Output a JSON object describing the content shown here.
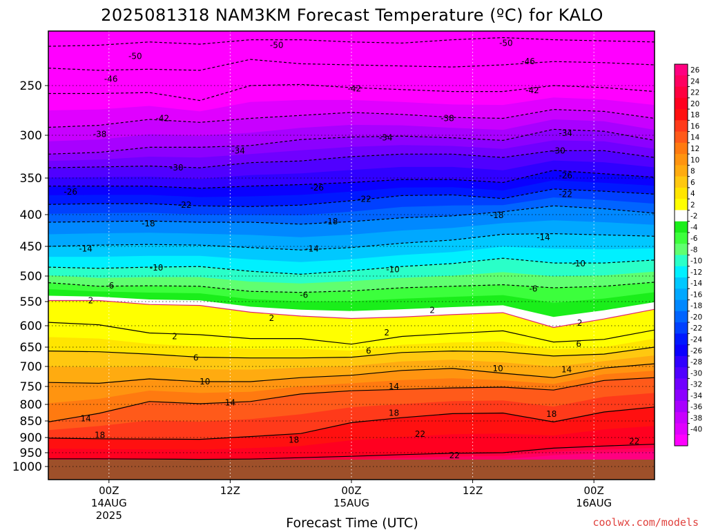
{
  "chart_data": {
    "type": "heatmap",
    "title": "2025081318 NAM3KM Forecast Temperature (ºC) for KALO",
    "xlabel": "Forecast Time (UTC)",
    "ylabel": "",
    "credit": "coolwx.com/models",
    "x_range_hours": [
      -6,
      54
    ],
    "y_scale": "pressure",
    "y_range_hpa": [
      1000,
      200
    ],
    "y_ticks": [
      "250",
      "300",
      "350",
      "400",
      "450",
      "500",
      "550",
      "600",
      "650",
      "700",
      "750",
      "800",
      "850",
      "900",
      "950",
      "1000"
    ],
    "y_tick_values": [
      250,
      300,
      350,
      400,
      450,
      500,
      550,
      600,
      650,
      700,
      750,
      800,
      850,
      900,
      950,
      1000
    ],
    "x_ticks": [
      {
        "hour": 0,
        "label": "00Z",
        "date": "14AUG",
        "year": "2025"
      },
      {
        "hour": 12,
        "label": "12Z",
        "date": "",
        "year": ""
      },
      {
        "hour": 24,
        "label": "00Z",
        "date": "15AUG",
        "year": ""
      },
      {
        "hour": 36,
        "label": "12Z",
        "date": "",
        "year": ""
      },
      {
        "hour": 48,
        "label": "00Z",
        "date": "16AUG",
        "year": ""
      }
    ],
    "grid": "dotted",
    "colorbar": {
      "position": "right",
      "levels": [
        26,
        24,
        22,
        20,
        18,
        16,
        14,
        12,
        10,
        8,
        6,
        4,
        2,
        -2,
        -4,
        -6,
        -8,
        -10,
        -12,
        -14,
        -16,
        -18,
        -20,
        -22,
        -24,
        -26,
        -28,
        -30,
        -32,
        -34,
        -36,
        -38,
        -40
      ],
      "level_labels": [
        "26",
        "24",
        "22",
        "20",
        "18",
        "16",
        "14",
        "12",
        "10",
        "8",
        "6",
        "4",
        "2",
        "-2",
        "-4",
        "-6",
        "-8",
        "-10",
        "-12",
        "-14",
        "-16",
        "-18",
        "-20",
        "-22",
        "-24",
        "-26",
        "-28",
        "-30",
        "-32",
        "-34",
        "-36",
        "-38",
        "-40"
      ],
      "colors": [
        "#ff0080",
        "#ff0060",
        "#ff0040",
        "#ff0020",
        "#ff1010",
        "#ff3a1a",
        "#ff5a1a",
        "#ff7a10",
        "#ff9410",
        "#ffab10",
        "#ffc810",
        "#ffe500",
        "#ffff00",
        "#ffffff",
        "#1aee1a",
        "#3cff3c",
        "#60ff70",
        "#2affc8",
        "#00f0ff",
        "#00c8ff",
        "#00a8ff",
        "#0088ff",
        "#0064ff",
        "#0040ff",
        "#0018ff",
        "#0a00ff",
        "#3000ff",
        "#5000ff",
        "#7000ff",
        "#8c00ff",
        "#a800ff",
        "#c800ff",
        "#e000ff",
        "#ff00ff"
      ]
    },
    "ground": {
      "color": "#9e502a",
      "below_hpa": 975
    },
    "contours": [
      {
        "value": -50,
        "label": "-50",
        "style": "dashed",
        "color": "#000000",
        "hpa": [
          214,
          213,
          210,
          212,
          208,
          208,
          210,
          211,
          208,
          206,
          208,
          209,
          210
        ]
      },
      {
        "value": -46,
        "label": "-46",
        "style": "dashed",
        "color": "#000000",
        "hpa": [
          234,
          236,
          235,
          236,
          226,
          230,
          231,
          232,
          233,
          231,
          228,
          229,
          231
        ]
      },
      {
        "value": -42,
        "label": "-42",
        "style": "dashed",
        "color": "#000000",
        "hpa": [
          258,
          258,
          257,
          265,
          250,
          249,
          252,
          254,
          256,
          256,
          250,
          252,
          256
        ]
      },
      {
        "value": -38,
        "label": "-38",
        "style": "dashed",
        "color": "#000000",
        "hpa": [
          292,
          290,
          284,
          287,
          283,
          280,
          277,
          279,
          282,
          283,
          274,
          276,
          283
        ]
      },
      {
        "value": -34,
        "label": "-34",
        "style": "dashed",
        "color": "#000000",
        "hpa": [
          322,
          320,
          314,
          314,
          312,
          305,
          302,
          301,
          303,
          306,
          294,
          296,
          306
        ]
      },
      {
        "value": -30,
        "label": "-30",
        "style": "dashed",
        "color": "#000000",
        "hpa": [
          338,
          337,
          336,
          338,
          332,
          330,
          325,
          322,
          322,
          326,
          318,
          318,
          326
        ]
      },
      {
        "value": -26,
        "label": "-26",
        "style": "dashed",
        "color": "#000000",
        "hpa": [
          361,
          361,
          361,
          364,
          361,
          359,
          356,
          352,
          352,
          356,
          341,
          345,
          349
        ]
      },
      {
        "value": -22,
        "label": "-22",
        "style": "dashed",
        "color": "#000000",
        "hpa": [
          386,
          385,
          385,
          388,
          389,
          387,
          381,
          374,
          373,
          378,
          365,
          368,
          372
        ]
      },
      {
        "value": -18,
        "label": "-18",
        "style": "dashed",
        "color": "#000000",
        "hpa": [
          412,
          411,
          410,
          412,
          412,
          415,
          411,
          405,
          402,
          396,
          388,
          392,
          398
        ]
      },
      {
        "value": -14,
        "label": "-14",
        "style": "dashed",
        "color": "#000000",
        "hpa": [
          450,
          448,
          447,
          448,
          452,
          456,
          452,
          445,
          440,
          431,
          430,
          432,
          434
        ]
      },
      {
        "value": -10,
        "label": "-10",
        "style": "dashed",
        "color": "#000000",
        "hpa": [
          485,
          487,
          485,
          484,
          492,
          497,
          491,
          484,
          479,
          470,
          478,
          478,
          473
        ]
      },
      {
        "value": -6,
        "label": "-6",
        "style": "dashed",
        "color": "#000000",
        "hpa": [
          513,
          520,
          519,
          520,
          530,
          532,
          529,
          523,
          520,
          517,
          523,
          520,
          512
        ]
      },
      {
        "value": 2,
        "label": "2",
        "style": "solid",
        "color": "#e0206e",
        "hpa": [
          548,
          548,
          556,
          558,
          572,
          580,
          585,
          582,
          577,
          573,
          604,
          586,
          566
        ]
      },
      {
        "value": 2,
        "label": "2",
        "style": "solid",
        "color": "#000000",
        "hpa": [
          593,
          598,
          617,
          621,
          630,
          630,
          643,
          625,
          618,
          612,
          638,
          632,
          610
        ]
      },
      {
        "value": 6,
        "label": "6",
        "style": "solid",
        "color": "#000000",
        "hpa": [
          660,
          662,
          668,
          676,
          678,
          678,
          676,
          664,
          660,
          662,
          673,
          668,
          650
        ]
      },
      {
        "value": 10,
        "label": "10",
        "style": "solid",
        "color": "#000000",
        "hpa": [
          740,
          742,
          731,
          738,
          738,
          728,
          722,
          710,
          705,
          717,
          728,
          704,
          693
        ]
      },
      {
        "value": 14,
        "label": "14",
        "style": "solid",
        "color": "#000000",
        "hpa": [
          853,
          827,
          792,
          798,
          792,
          771,
          762,
          758,
          754,
          752,
          760,
          735,
          728
        ]
      },
      {
        "value": 18,
        "label": "18",
        "style": "solid",
        "color": "#000000",
        "hpa": [
          902,
          904,
          905,
          906,
          897,
          888,
          855,
          840,
          828,
          826,
          853,
          823,
          808
        ]
      },
      {
        "value": 22,
        "label": "22",
        "style": "solid",
        "color": "#000000",
        "hpa": [
          972,
          972,
          973,
          974,
          973,
          968,
          963,
          957,
          952,
          950,
          935,
          928,
          922
        ]
      }
    ],
    "contour_labels": [
      {
        "text": "-50",
        "h": 16.6,
        "hpa": 213
      },
      {
        "text": "-50",
        "h": 2.6,
        "hpa": 223
      },
      {
        "text": "-50",
        "h": 39.3,
        "hpa": 211
      },
      {
        "text": "-46",
        "h": 0.2,
        "hpa": 244
      },
      {
        "text": "-46",
        "h": 41.5,
        "hpa": 228
      },
      {
        "text": "-42",
        "h": 5.3,
        "hpa": 283
      },
      {
        "text": "-42",
        "h": 24.3,
        "hpa": 253
      },
      {
        "text": "-42",
        "h": 41.9,
        "hpa": 255
      },
      {
        "text": "-38",
        "h": -0.9,
        "hpa": 299
      },
      {
        "text": "-38",
        "h": 33.5,
        "hpa": 283
      },
      {
        "text": "-34",
        "h": 12.8,
        "hpa": 318
      },
      {
        "text": "-34",
        "h": 27.4,
        "hpa": 303
      },
      {
        "text": "-34",
        "h": 45.2,
        "hpa": 298
      },
      {
        "text": "-30",
        "h": 6.7,
        "hpa": 338
      },
      {
        "text": "-30",
        "h": 44.5,
        "hpa": 318
      },
      {
        "text": "-26",
        "h": -3.8,
        "hpa": 369
      },
      {
        "text": "-26",
        "h": 20.6,
        "hpa": 363
      },
      {
        "text": "-26",
        "h": 45.2,
        "hpa": 347
      },
      {
        "text": "-22",
        "h": 7.5,
        "hpa": 387
      },
      {
        "text": "-22",
        "h": 25.3,
        "hpa": 379
      },
      {
        "text": "-22",
        "h": 45.2,
        "hpa": 372
      },
      {
        "text": "-18",
        "h": 3.9,
        "hpa": 414
      },
      {
        "text": "-18",
        "h": 22.0,
        "hpa": 411
      },
      {
        "text": "-18",
        "h": 38.4,
        "hpa": 401
      },
      {
        "text": "-14",
        "h": -2.3,
        "hpa": 454
      },
      {
        "text": "-14",
        "h": 20.1,
        "hpa": 454
      },
      {
        "text": "-14",
        "h": 43.0,
        "hpa": 436
      },
      {
        "text": "-10",
        "h": 4.7,
        "hpa": 486
      },
      {
        "text": "-10",
        "h": 28.1,
        "hpa": 489
      },
      {
        "text": "-10",
        "h": 46.5,
        "hpa": 479
      },
      {
        "text": "-6",
        "h": 0.1,
        "hpa": 519
      },
      {
        "text": "-6",
        "h": 19.3,
        "hpa": 537
      },
      {
        "text": "-6",
        "h": 42.0,
        "hpa": 525
      },
      {
        "text": "2",
        "h": -1.8,
        "hpa": 548
      },
      {
        "text": "2",
        "h": 16.1,
        "hpa": 584
      },
      {
        "text": "2",
        "h": 32.0,
        "hpa": 568
      },
      {
        "text": "2",
        "h": 6.5,
        "hpa": 625
      },
      {
        "text": "2",
        "h": 27.5,
        "hpa": 616
      },
      {
        "text": "2",
        "h": 46.6,
        "hpa": 594
      },
      {
        "text": "6",
        "h": 8.6,
        "hpa": 678
      },
      {
        "text": "6",
        "h": 25.7,
        "hpa": 660
      },
      {
        "text": "6",
        "h": 46.5,
        "hpa": 643
      },
      {
        "text": "10",
        "h": 9.5,
        "hpa": 738
      },
      {
        "text": "10",
        "h": 38.5,
        "hpa": 705
      },
      {
        "text": "14",
        "h": -2.3,
        "hpa": 843
      },
      {
        "text": "14",
        "h": 12.0,
        "hpa": 795
      },
      {
        "text": "14",
        "h": 28.2,
        "hpa": 750
      },
      {
        "text": "14",
        "h": 45.3,
        "hpa": 708
      },
      {
        "text": "18",
        "h": -0.9,
        "hpa": 893
      },
      {
        "text": "18",
        "h": 18.3,
        "hpa": 908
      },
      {
        "text": "18",
        "h": 28.2,
        "hpa": 826
      },
      {
        "text": "18",
        "h": 43.8,
        "hpa": 829
      },
      {
        "text": "22",
        "h": 30.8,
        "hpa": 890
      },
      {
        "text": "22",
        "h": 34.2,
        "hpa": 960
      },
      {
        "text": "22",
        "h": 52.0,
        "hpa": 912
      }
    ]
  }
}
